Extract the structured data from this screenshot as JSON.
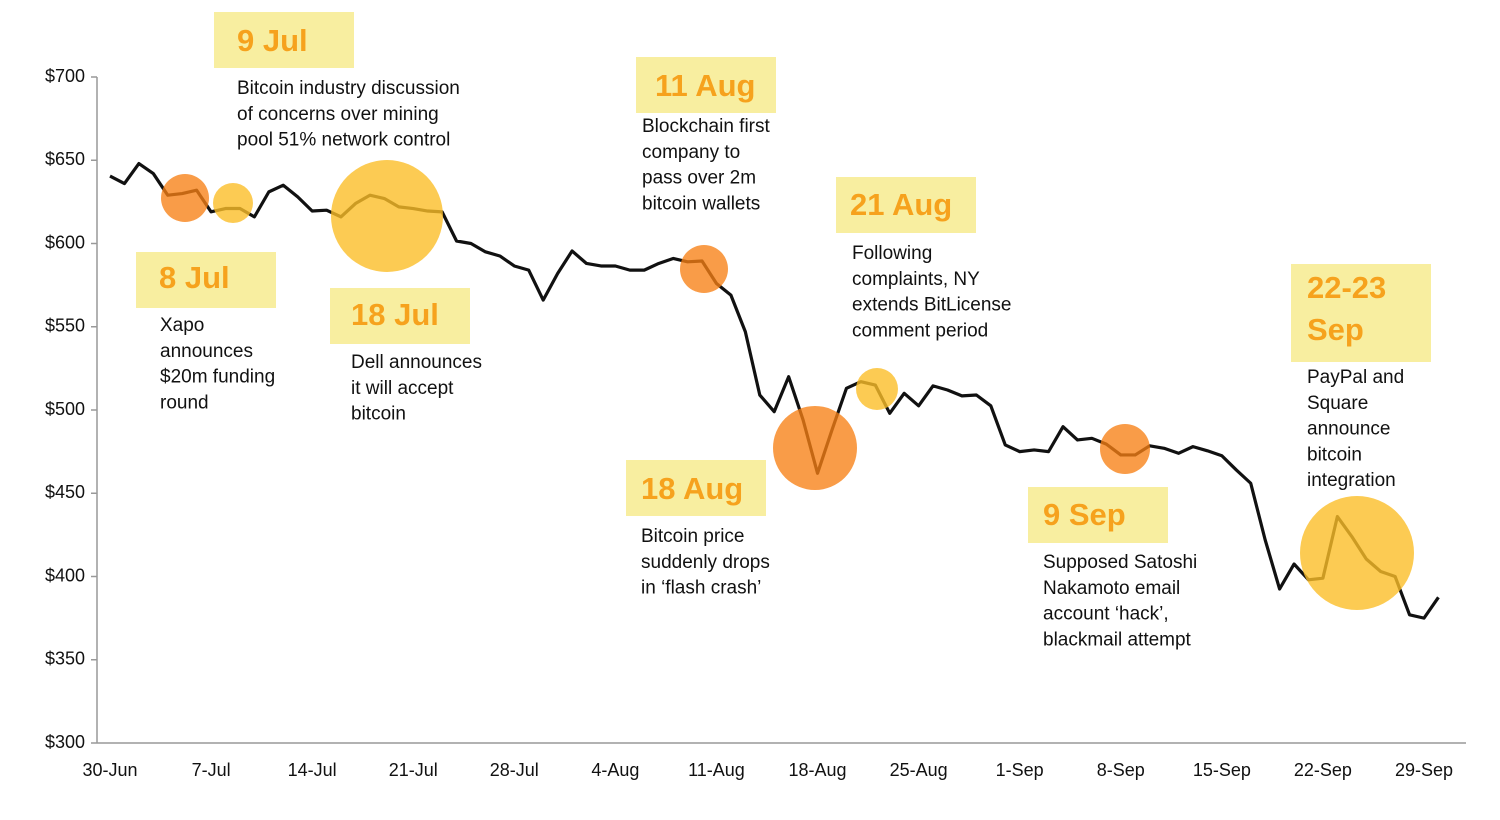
{
  "chart_data": {
    "type": "line",
    "categories": [
      "30-Jun",
      null,
      null,
      null,
      null,
      null,
      null,
      "7-Jul",
      null,
      null,
      null,
      null,
      null,
      null,
      "14-Jul",
      null,
      null,
      null,
      null,
      null,
      null,
      "21-Jul",
      null,
      null,
      null,
      null,
      null,
      null,
      "28-Jul",
      null,
      null,
      null,
      null,
      null,
      null,
      "4-Aug",
      null,
      null,
      null,
      null,
      null,
      null,
      "11-Aug",
      null,
      null,
      null,
      null,
      null,
      null,
      "18-Aug",
      null,
      null,
      null,
      null,
      null,
      null,
      "25-Aug",
      null,
      null,
      null,
      null,
      null,
      null,
      "1-Sep",
      null,
      null,
      null,
      null,
      null,
      null,
      "8-Sep",
      null,
      null,
      null,
      null,
      null,
      null,
      "15-Sep",
      null,
      null,
      null,
      null,
      null,
      null,
      "22-Sep",
      null,
      null,
      null,
      null,
      null,
      null,
      "29-Sep",
      null
    ],
    "series": [
      {
        "color": "#111111",
        "values": [
          640.5,
          636,
          648,
          642,
          629,
          630,
          632,
          619,
          621,
          621,
          616,
          631,
          635,
          628,
          619.5,
          620,
          616,
          624,
          629,
          627,
          622,
          621,
          619.5,
          619,
          601.5,
          600,
          595,
          592.5,
          586.5,
          584,
          566,
          582,
          595.5,
          588,
          586.5,
          586.5,
          584,
          584,
          588,
          591,
          589,
          589.5,
          576,
          569,
          547,
          509,
          499,
          520,
          494,
          462,
          488,
          513,
          517,
          515,
          498,
          510,
          502.5,
          514.5,
          512,
          508.5,
          509,
          502.5,
          479,
          475,
          476,
          475,
          490,
          482,
          483,
          479.5,
          473,
          473,
          478.5,
          477,
          474,
          478,
          475.5,
          472.5,
          464,
          456,
          422,
          392.5,
          407.5,
          398,
          399,
          436,
          424,
          410.5,
          403,
          400,
          377,
          375,
          387.5
        ]
      }
    ],
    "ylim": [
      300,
      700
    ],
    "yticks": [
      {
        "value": 300,
        "label": "$300"
      },
      {
        "value": 350,
        "label": "$350"
      },
      {
        "value": 400,
        "label": "$400"
      },
      {
        "value": 450,
        "label": "$450"
      },
      {
        "value": 500,
        "label": "$500"
      },
      {
        "value": 550,
        "label": "$550"
      },
      {
        "value": 600,
        "label": "$600"
      },
      {
        "value": 650,
        "label": "$650"
      },
      {
        "value": 700,
        "label": "$700"
      }
    ],
    "annotations": [
      {
        "label": [
          "9 Jul"
        ],
        "text": [
          "Bitcoin industry discussion",
          "of concerns over mining",
          "pool 51% network control"
        ]
      },
      {
        "label": [
          "8 Jul"
        ],
        "text": [
          "Xapo",
          "announces",
          "$20m funding",
          "round"
        ]
      },
      {
        "label": [
          "18 Jul"
        ],
        "text": [
          "Dell announces",
          "it will accept",
          "bitcoin"
        ]
      },
      {
        "label": [
          "11 Aug"
        ],
        "text": [
          "Blockchain first",
          "company to",
          "pass over 2m",
          "bitcoin wallets"
        ]
      },
      {
        "label": [
          "21 Aug"
        ],
        "text": [
          "Following",
          "complaints, NY",
          "extends BitLicense",
          "comment period"
        ]
      },
      {
        "label": [
          "18 Aug"
        ],
        "text": [
          "Bitcoin price",
          "suddenly drops",
          "in ‘flash crash’"
        ]
      },
      {
        "label": [
          "9 Sep"
        ],
        "text": [
          "Supposed Satoshi",
          "Nakamoto email",
          "account ‘hack’,",
          "blackmail attempt"
        ]
      },
      {
        "label": [
          "22-23",
          "Sep"
        ],
        "text": [
          "PayPal and",
          "Square",
          "announce",
          "bitcoin",
          "integration"
        ]
      }
    ]
  }
}
